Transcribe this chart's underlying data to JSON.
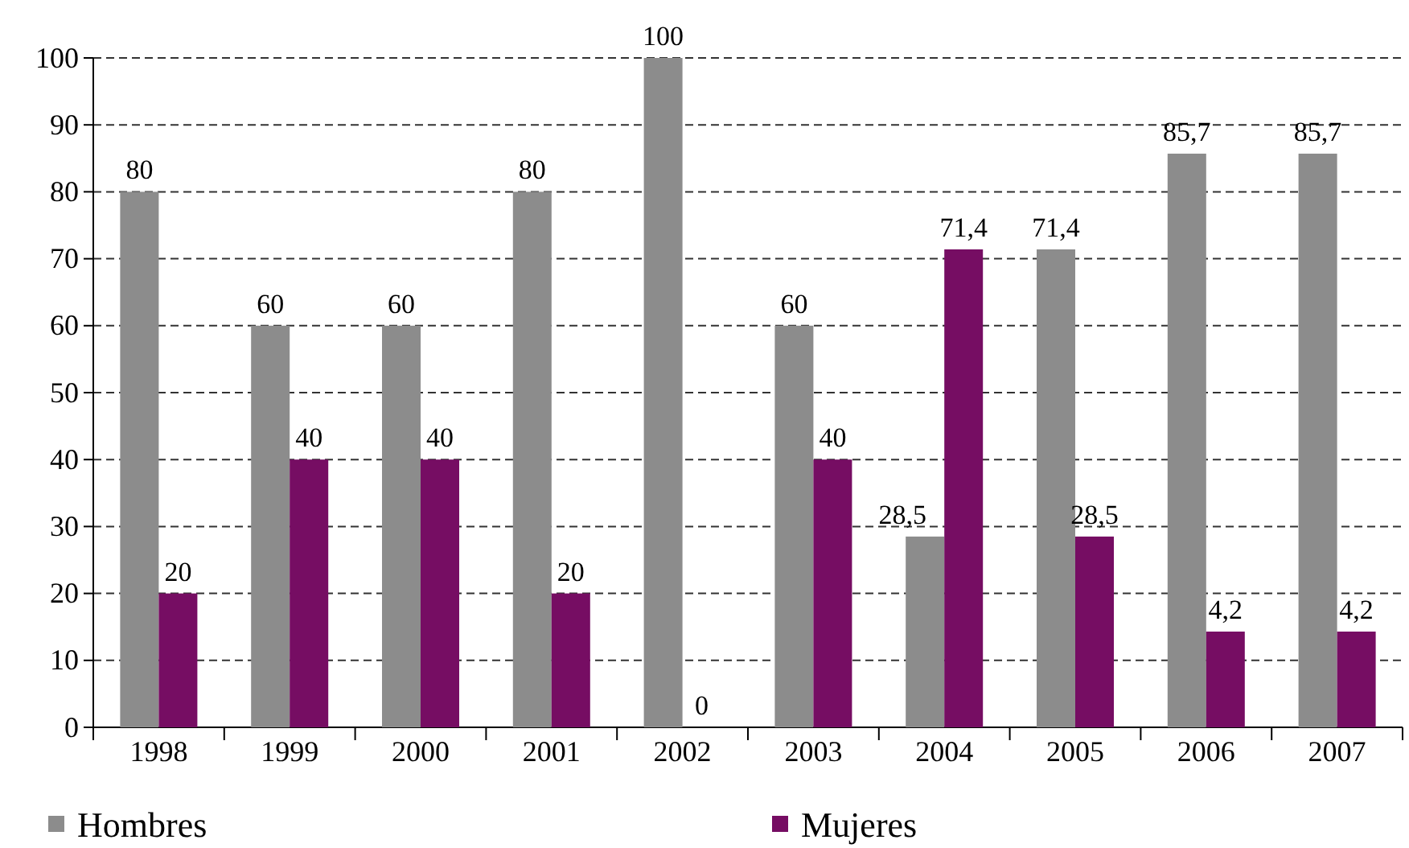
{
  "chart_data": {
    "type": "bar",
    "categories": [
      "1998",
      "1999",
      "2000",
      "2001",
      "2002",
      "2003",
      "2004",
      "2005",
      "2006",
      "2007"
    ],
    "series": [
      {
        "name": "Hombres",
        "color": "#8c8c8c",
        "values": [
          80,
          60,
          60,
          80,
          100,
          60,
          28.5,
          71.4,
          85.7,
          85.7
        ],
        "value_labels": [
          "80",
          "60",
          "60",
          "80",
          "100",
          "60",
          "28,5",
          "71,4",
          "85,7",
          "85,7"
        ]
      },
      {
        "name": "Mujeres",
        "color": "#760d63",
        "values": [
          20,
          40,
          40,
          20,
          0,
          40,
          71.4,
          28.5,
          14.3,
          14.3
        ],
        "value_labels": [
          "20",
          "40",
          "40",
          "20",
          "0",
          "40",
          "71,4",
          "28,5",
          null,
          null
        ]
      }
    ],
    "annotations": [
      {
        "text": "4,2",
        "x": "2006",
        "y": 14.3
      },
      {
        "text": "4,2",
        "x": "2007",
        "y": 14.3
      }
    ],
    "ylim": [
      0,
      100
    ],
    "yticks": [
      0,
      10,
      20,
      30,
      40,
      50,
      60,
      70,
      80,
      90,
      100
    ],
    "grid": "y",
    "legend": "bottom"
  }
}
